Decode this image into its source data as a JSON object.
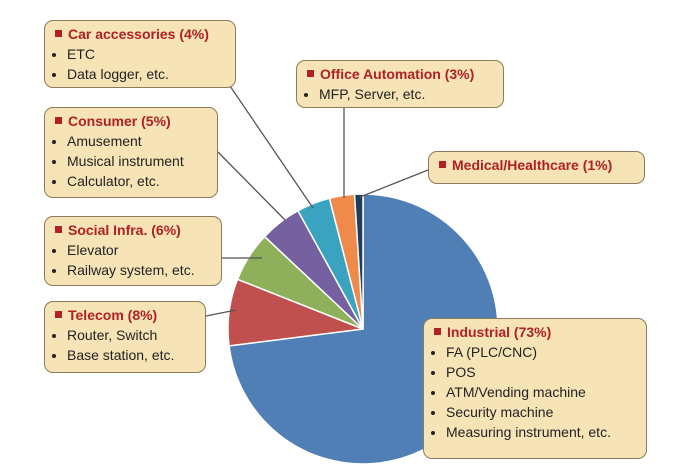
{
  "chart_data": {
    "type": "pie",
    "categories": [
      "Industrial",
      "Telecom",
      "Social Infra.",
      "Consumer",
      "Car accessories",
      "Office Automation",
      "Medical/Healthcare"
    ],
    "values": [
      73,
      8,
      6,
      5,
      4,
      3,
      1
    ],
    "value_labels": [
      "(73%)",
      "(8%)",
      "(6%)",
      "(5%)",
      "(4%)",
      "(3%)",
      "(1%)"
    ],
    "colors": [
      "#4f7fb5",
      "#c0504d",
      "#8fb05b",
      "#7560a0",
      "#3aa3c0",
      "#f08a4b",
      "#1f3c5a"
    ],
    "details": [
      [
        "FA (PLC/CNC)",
        "POS",
        "ATM/Vending machine",
        "Security machine",
        "Measuring instrument, etc."
      ],
      [
        "Router, Switch",
        "Base station, etc."
      ],
      [
        "Elevator",
        "Railway system, etc."
      ],
      [
        "Amusement",
        "Musical instrument",
        "Calculator, etc."
      ],
      [
        "ETC",
        "Data logger, etc."
      ],
      [
        "MFP, Server, etc."
      ],
      []
    ]
  }
}
